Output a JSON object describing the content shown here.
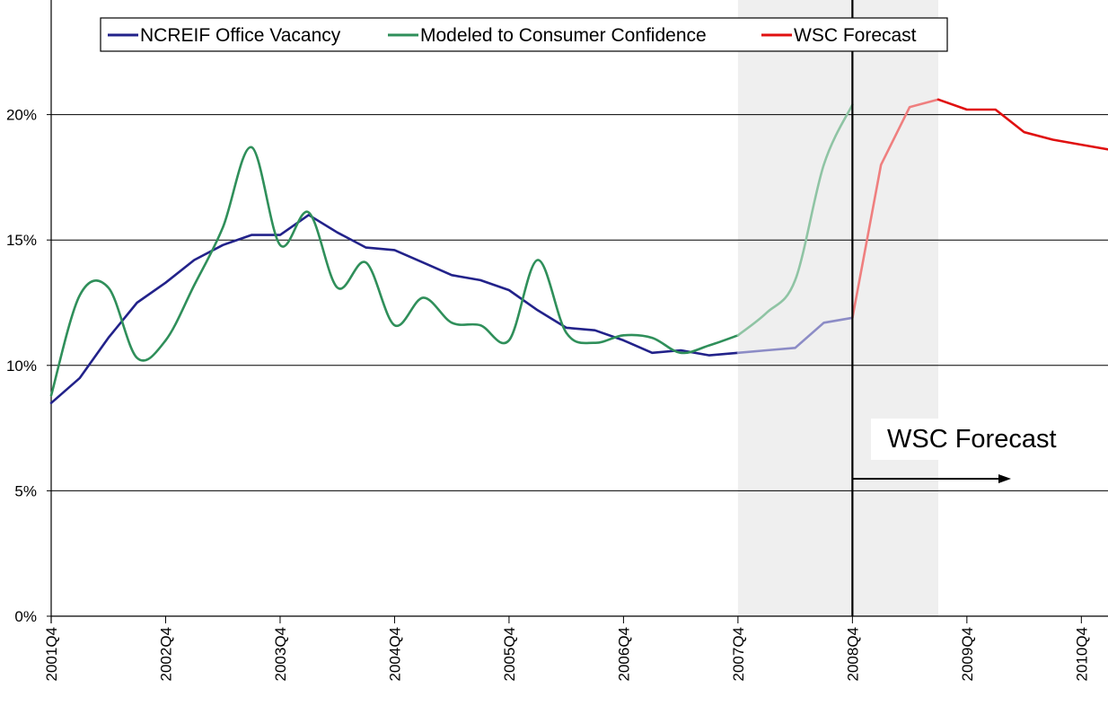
{
  "chart_data": {
    "type": "line",
    "title": "",
    "xlabel": "",
    "ylabel": "",
    "ylim": [
      0,
      0.245
    ],
    "y_ticks": [
      0,
      0.05,
      0.1,
      0.15,
      0.2
    ],
    "y_tick_labels": [
      "0%",
      "5%",
      "10%",
      "15%",
      "20%"
    ],
    "x_ticks": [
      0,
      4,
      8,
      12,
      16,
      20,
      24,
      28,
      32,
      36
    ],
    "x_tick_labels": [
      "2001Q4",
      "2002Q4",
      "2003Q4",
      "2004Q4",
      "2005Q4",
      "2006Q4",
      "2007Q4",
      "2008Q4",
      "2009Q4",
      "2010Q4"
    ],
    "grid": "horizontal",
    "legend_position": "top",
    "shaded_regions": [
      {
        "from": "2007Q4",
        "to": "2009Q3"
      }
    ],
    "forecast_line_at": "2008Q4",
    "series": [
      {
        "name": "NCREIF Office Vacancy",
        "color": "#22228a",
        "x": [
          "2001Q4",
          "2002Q1",
          "2002Q2",
          "2002Q3",
          "2002Q4",
          "2003Q1",
          "2003Q2",
          "2003Q3",
          "2003Q4",
          "2004Q1",
          "2004Q2",
          "2004Q3",
          "2004Q4",
          "2005Q1",
          "2005Q2",
          "2005Q3",
          "2005Q4",
          "2006Q1",
          "2006Q2",
          "2006Q3",
          "2006Q4",
          "2007Q1",
          "2007Q2",
          "2007Q3",
          "2007Q4"
        ],
        "values": [
          0.085,
          0.095,
          0.111,
          0.125,
          0.133,
          0.142,
          0.148,
          0.152,
          0.152,
          0.16,
          0.153,
          0.147,
          0.146,
          0.141,
          0.136,
          0.134,
          0.13,
          0.122,
          0.115,
          0.114,
          0.11,
          0.105,
          0.106,
          0.104,
          0.105
        ]
      },
      {
        "name": "NCREIF Office Vacancy (recent)",
        "color": "#8c8cc6",
        "x": [
          "2007Q4",
          "2008Q1",
          "2008Q2",
          "2008Q3",
          "2008Q4"
        ],
        "values": [
          0.105,
          0.106,
          0.107,
          0.117,
          0.119
        ]
      },
      {
        "name": "Modeled to Consumer Confidence",
        "color": "#2f8f5a",
        "x": [
          "2001Q4",
          "2002Q1",
          "2002Q2",
          "2002Q3",
          "2002Q4",
          "2003Q1",
          "2003Q2",
          "2003Q3",
          "2003Q4",
          "2004Q1",
          "2004Q2",
          "2004Q3",
          "2004Q4",
          "2005Q1",
          "2005Q2",
          "2005Q3",
          "2005Q4",
          "2006Q1",
          "2006Q2",
          "2006Q3",
          "2006Q4",
          "2007Q1",
          "2007Q2",
          "2007Q3",
          "2007Q4"
        ],
        "values": [
          0.088,
          0.128,
          0.131,
          0.103,
          0.11,
          0.132,
          0.155,
          0.187,
          0.148,
          0.161,
          0.131,
          0.141,
          0.116,
          0.127,
          0.117,
          0.116,
          0.11,
          0.142,
          0.113,
          0.109,
          0.112,
          0.111,
          0.105,
          0.108,
          0.112
        ]
      },
      {
        "name": "Modeled to Consumer Confidence (recent)",
        "color": "#8fc4a4",
        "x": [
          "2007Q4",
          "2008Q1",
          "2008Q2",
          "2008Q3",
          "2008Q4"
        ],
        "values": [
          0.112,
          0.121,
          0.134,
          0.18,
          0.204
        ]
      },
      {
        "name": "WSC Forecast (shaded)",
        "color": "#ef7f7f",
        "x": [
          "2008Q4",
          "2009Q1",
          "2009Q2",
          "2009Q3"
        ],
        "values": [
          0.119,
          0.18,
          0.203,
          0.206
        ]
      },
      {
        "name": "WSC Forecast",
        "color": "#e01010",
        "x": [
          "2009Q3",
          "2009Q4",
          "2010Q1",
          "2010Q2",
          "2010Q3",
          "2010Q4",
          "2011Q1"
        ],
        "values": [
          0.206,
          0.202,
          0.202,
          0.193,
          0.19,
          0.188,
          0.186
        ]
      }
    ],
    "legend": [
      {
        "label": "NCREIF Office Vacancy",
        "color": "#22228a"
      },
      {
        "label": "Modeled to Consumer Confidence",
        "color": "#2f8f5a"
      },
      {
        "label": "WSC Forecast",
        "color": "#e01010"
      }
    ],
    "annotation": {
      "text": "WSC Forecast"
    }
  }
}
